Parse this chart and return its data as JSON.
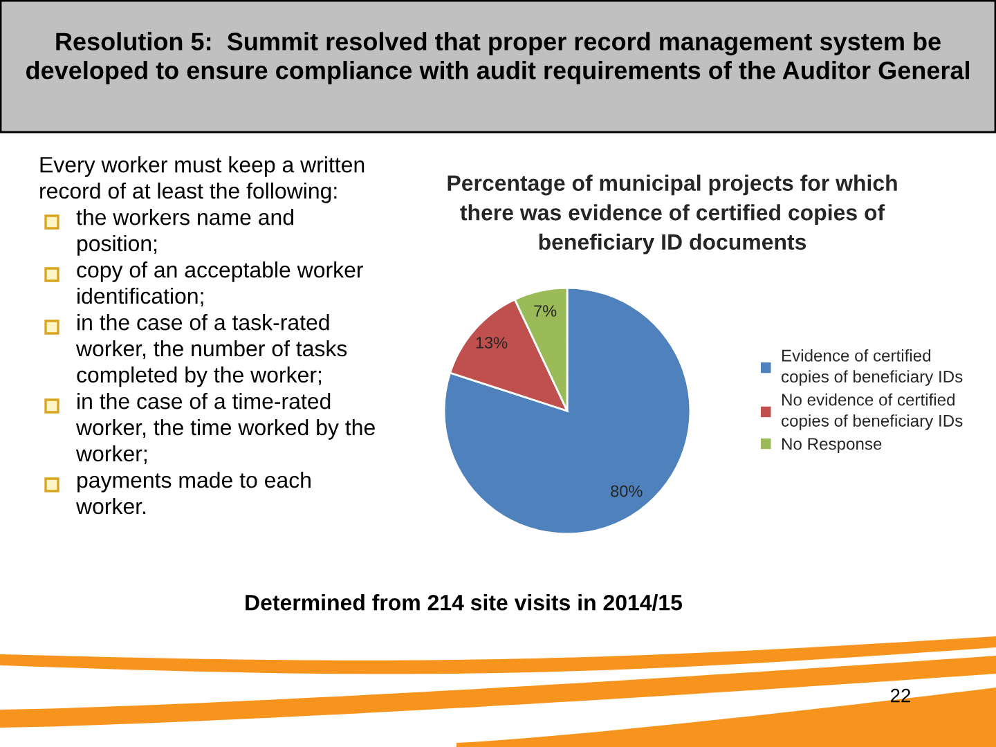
{
  "chart_data": [
    {
      "type": "other",
      "title": "Resolution 5:  Summit resolved that proper record management system be developed to ensure compliance with audit requirements of the Auditor General",
      "annotations": [
        "Every worker must keep a written record of at least the following:",
        "the workers name and position;",
        "copy of an acceptable worker identification;",
        "in the case of a task-rated worker, the number of tasks completed by the worker;",
        "in the case of a time-rated worker, the time worked by the worker;",
        "payments made to each worker."
      ]
    },
    {
      "type": "pie",
      "title": "Percentage of municipal projects for which there was evidence of certified copies of beneficiary ID documents",
      "categories": [
        "Evidence of certified copies of beneficiary IDs",
        "No evidence of certified copies of beneficiary IDs",
        "No Response"
      ],
      "values": [
        80,
        13,
        7
      ],
      "value_labels": [
        "80%",
        "13%",
        "7%"
      ],
      "colors": [
        "#4f81bd",
        "#c0504d",
        "#9bbb59"
      ],
      "legend": "right",
      "annotations": [
        "Determined from 214 site visits in 2014/15",
        "22"
      ]
    }
  ]
}
